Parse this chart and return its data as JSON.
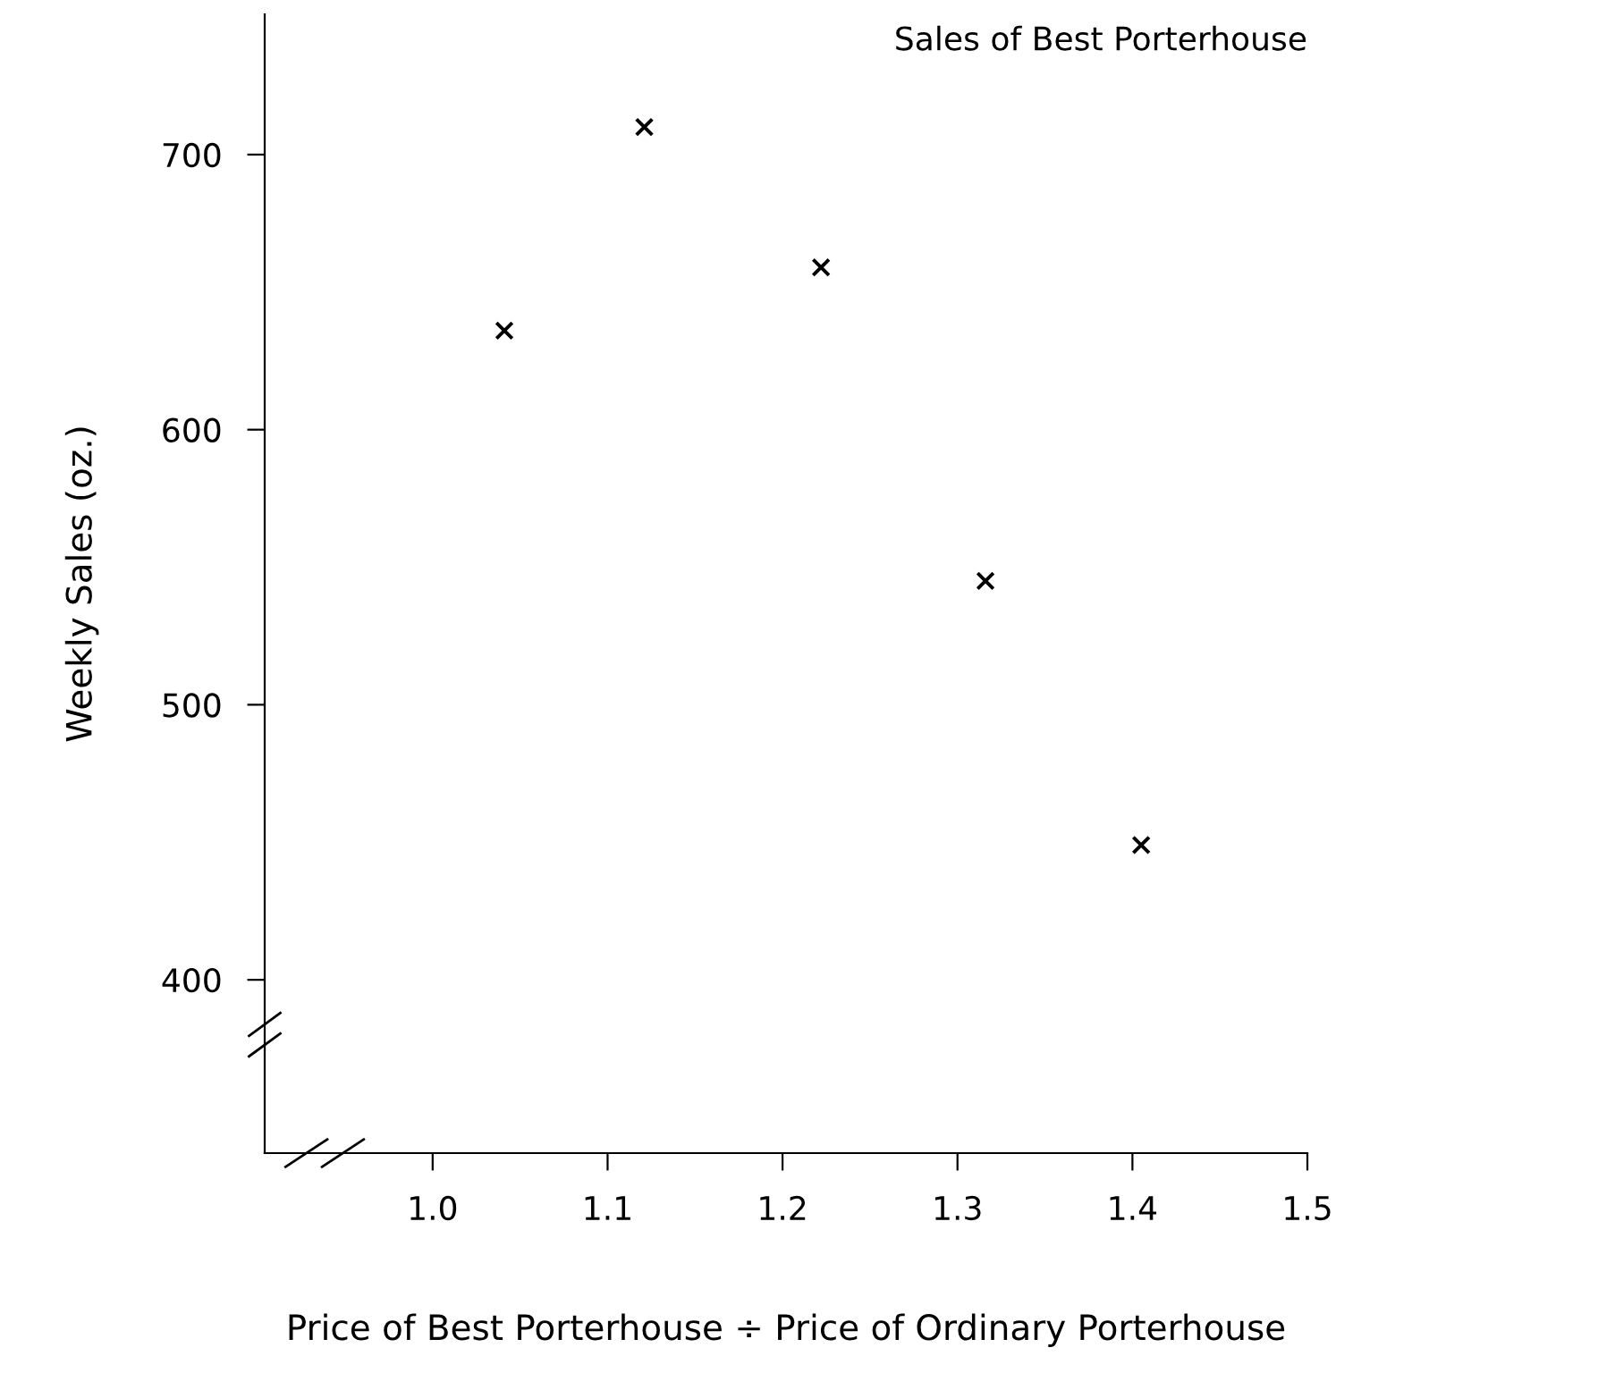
{
  "chart_data": {
    "type": "scatter",
    "title": "Sales of Best Porterhouse",
    "xlabel": "Price of Best Porterhouse ÷ Price of Ordinary Porterhouse",
    "ylabel": "Weekly Sales (oz.)",
    "x": [
      1.041,
      1.121,
      1.222,
      1.316,
      1.405
    ],
    "series": [
      {
        "color": "#000000",
        "values": [
          636,
          710,
          659,
          545,
          449
        ]
      }
    ],
    "marker": "cross",
    "grid": false,
    "legend": false,
    "xlim": [
      0.904,
      1.5
    ],
    "xticks": [
      {
        "value": 1.0,
        "label": "1.0"
      },
      1.1,
      1.2,
      1.3,
      1.4,
      1.5
    ],
    "ylim": [
      337,
      751
    ],
    "yticks": [
      400,
      500,
      600,
      700
    ]
  }
}
